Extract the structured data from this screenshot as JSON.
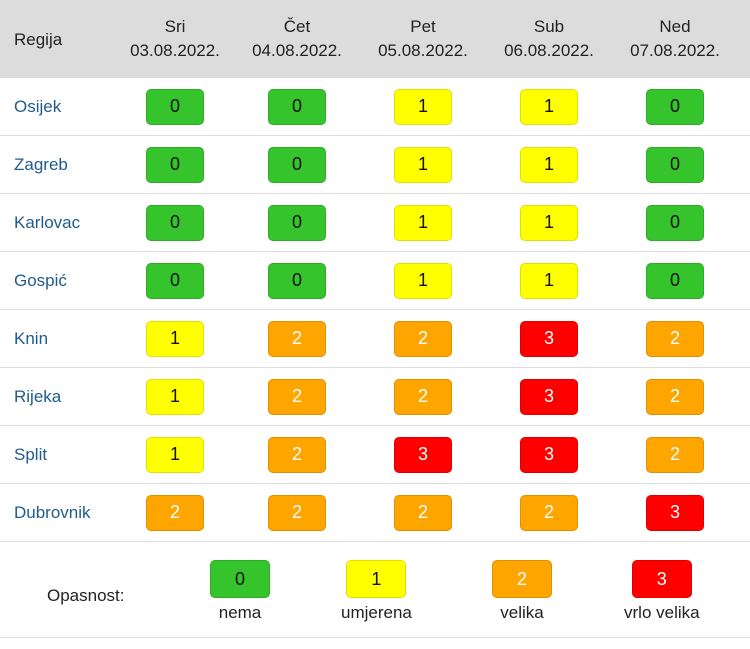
{
  "table": {
    "region_header": "Regija",
    "days": [
      {
        "name": "Sri",
        "date": "03.08.2022."
      },
      {
        "name": "Čet",
        "date": "04.08.2022."
      },
      {
        "name": "Pet",
        "date": "05.08.2022."
      },
      {
        "name": "Sub",
        "date": "06.08.2022."
      },
      {
        "name": "Ned",
        "date": "07.08.2022."
      }
    ],
    "rows": [
      {
        "region": "Osijek",
        "values": [
          "0",
          "0",
          "1",
          "1",
          "0"
        ]
      },
      {
        "region": "Zagreb",
        "values": [
          "0",
          "0",
          "1",
          "1",
          "0"
        ]
      },
      {
        "region": "Karlovac",
        "values": [
          "0",
          "0",
          "1",
          "1",
          "0"
        ]
      },
      {
        "region": "Gospić",
        "values": [
          "0",
          "0",
          "1",
          "1",
          "0"
        ]
      },
      {
        "region": "Knin",
        "values": [
          "1",
          "2",
          "2",
          "3",
          "2"
        ]
      },
      {
        "region": "Rijeka",
        "values": [
          "1",
          "2",
          "2",
          "3",
          "2"
        ]
      },
      {
        "region": "Split",
        "values": [
          "1",
          "2",
          "3",
          "3",
          "2"
        ]
      },
      {
        "region": "Dubrovnik",
        "values": [
          "2",
          "2",
          "2",
          "2",
          "3"
        ]
      }
    ]
  },
  "legend": {
    "label": "Opasnost:",
    "items": [
      {
        "value": "0",
        "name": "nema"
      },
      {
        "value": "1",
        "name": "umjerena"
      },
      {
        "value": "2",
        "name": "velika"
      },
      {
        "value": "3",
        "name": "vrlo velika"
      }
    ]
  },
  "colors": {
    "level_0": "#35c42c",
    "level_1": "#ffff00",
    "level_2": "#ffa500",
    "level_3": "#ff0000",
    "region_link": "#1f5b8c",
    "header_bg": "#dcdcdc"
  }
}
